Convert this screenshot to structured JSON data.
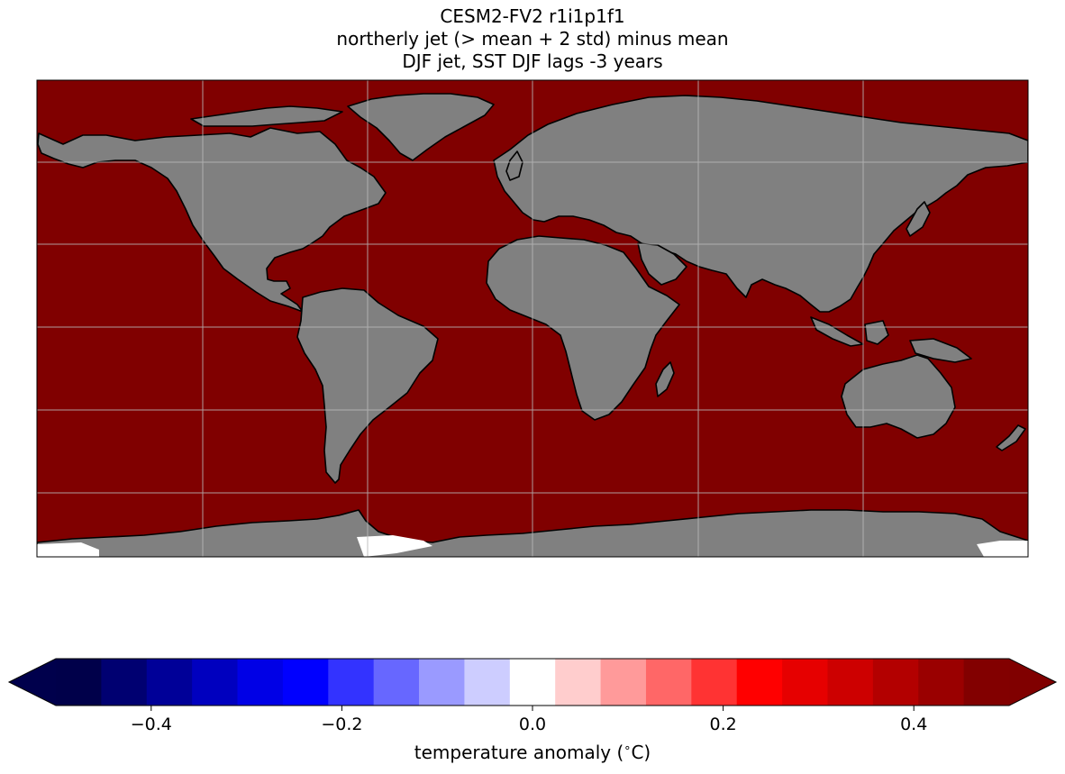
{
  "title": {
    "line1": "CESM2-FV2 r1i1p1f1",
    "line2": "northerly jet (> mean + 2 std) minus mean",
    "line3": "DJF jet, SST DJF lags -3 years"
  },
  "map": {
    "projection": "PlateCarree",
    "lon_range": [
      -180,
      180
    ],
    "lat_range": [
      -90,
      83
    ],
    "gridlines": true,
    "ocean_color": "#800000",
    "land_color": "#808080",
    "missing_color": "#ffffff",
    "field": "SST composite difference",
    "dominant_value": "≥ 0.5 (saturated dark red)"
  },
  "colorbar": {
    "label": "temperature anomaly ($^\\circ$C)",
    "label_text": "temperature anomaly (",
    "label_degree": "∘",
    "label_unit": "C)",
    "vmin": -0.5,
    "vmax": 0.5,
    "extend": "both",
    "boundaries": [
      -0.5,
      -0.45,
      -0.4,
      -0.35,
      -0.3,
      -0.25,
      -0.2,
      -0.15,
      -0.1,
      -0.05,
      0.0,
      0.05,
      0.1,
      0.15,
      0.2,
      0.25,
      0.3,
      0.35,
      0.4,
      0.45,
      0.5
    ],
    "colors": [
      "#00004a",
      "#000071",
      "#000098",
      "#0000bf",
      "#0000e6",
      "#0000ff",
      "#3333ff",
      "#6767ff",
      "#9a9aff",
      "#cdcdff",
      "#ffffff",
      "#ffcdcd",
      "#ff9a9a",
      "#ff6767",
      "#ff3333",
      "#ff0000",
      "#e60000",
      "#cd0000",
      "#b30000",
      "#9a0000",
      "#820000"
    ],
    "under_color": "#00004c",
    "over_color": "#800000",
    "ticks": [
      -0.4,
      -0.2,
      0.0,
      0.2,
      0.4
    ],
    "tick_labels": [
      "−0.4",
      "−0.2",
      "0.0",
      "0.2",
      "0.4"
    ]
  }
}
